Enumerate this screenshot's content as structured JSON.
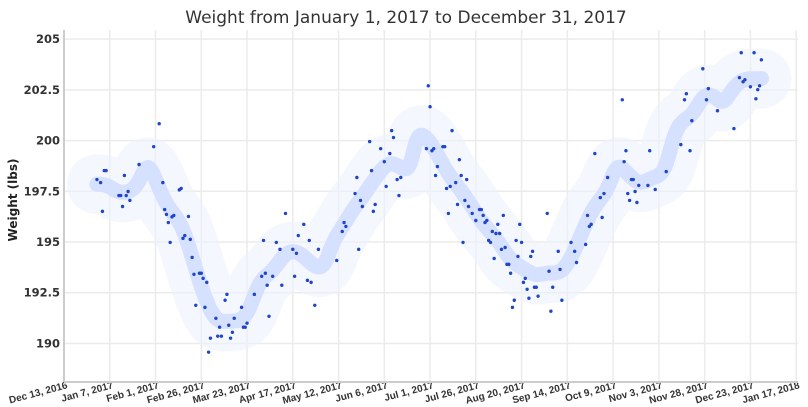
{
  "chart_data": {
    "type": "scatter",
    "title": "Weight from January 1, 2017 to December 31, 2017",
    "xlabel": "",
    "ylabel": "Weight (lbs)",
    "xlim": [
      "2016-12-13",
      "2018-01-18"
    ],
    "ylim": [
      188.1,
      205.45
    ],
    "grid": true,
    "legend": "none",
    "colors": {
      "points": "#1f46c8",
      "trend": "#d6e0ff",
      "grid": "#ebebeb",
      "axis": "#cccccc"
    },
    "x_ticks": [
      "2016-12-13",
      "2017-01-07",
      "2017-02-01",
      "2017-02-26",
      "2017-03-23",
      "2017-04-17",
      "2017-05-12",
      "2017-06-06",
      "2017-07-01",
      "2017-07-26",
      "2017-08-20",
      "2017-09-14",
      "2017-10-09",
      "2017-11-03",
      "2017-11-28",
      "2017-12-23",
      "2018-01-17"
    ],
    "x_tick_labels": [
      "Dec 13, 2016",
      "Jan 7, 2017",
      "Feb 1, 2017",
      "Feb 26, 2017",
      "Mar 23, 2017",
      "Apr 17, 2017",
      "May 12, 2017",
      "Jun 6, 2017",
      "Jul 1, 2017",
      "Jul 26, 2017",
      "Aug 20, 2017",
      "Sep 14, 2017",
      "Oct 9, 2017",
      "Nov 3, 2017",
      "Nov 28, 2017",
      "Dec 23, 2017",
      "Jan 17, 2018"
    ],
    "y_ticks": [
      190,
      192.5,
      195,
      197.5,
      200,
      202.5,
      205
    ],
    "y_tick_labels": [
      "190",
      "192.5",
      "195",
      "197.5",
      "200",
      "202.5",
      "205"
    ],
    "points": [
      [
        "2016-12-31",
        198.08
      ],
      [
        "2017-01-02",
        197.93
      ],
      [
        "2017-01-03",
        196.51
      ],
      [
        "2017-01-04",
        198.52
      ],
      [
        "2017-01-05",
        198.52
      ],
      [
        "2017-01-12",
        197.29
      ],
      [
        "2017-01-13",
        197.29
      ],
      [
        "2017-01-14",
        196.75
      ],
      [
        "2017-01-15",
        198.28
      ],
      [
        "2017-01-16",
        197.29
      ],
      [
        "2017-01-17",
        197.49
      ],
      [
        "2017-01-18",
        197.05
      ],
      [
        "2017-01-23",
        198.82
      ],
      [
        "2017-01-31",
        199.7
      ],
      [
        "2017-02-03",
        200.83
      ],
      [
        "2017-02-05",
        197.93
      ],
      [
        "2017-02-06",
        196.6
      ],
      [
        "2017-02-07",
        196.36
      ],
      [
        "2017-02-08",
        195.96
      ],
      [
        "2017-02-09",
        194.98
      ],
      [
        "2017-02-10",
        196.24
      ],
      [
        "2017-02-11",
        196.31
      ],
      [
        "2017-02-14",
        197.57
      ],
      [
        "2017-02-15",
        197.64
      ],
      [
        "2017-02-16",
        195.18
      ],
      [
        "2017-02-17",
        195.32
      ],
      [
        "2017-02-19",
        196.26
      ],
      [
        "2017-02-20",
        195.13
      ],
      [
        "2017-02-21",
        194.24
      ],
      [
        "2017-02-22",
        193.41
      ],
      [
        "2017-02-23",
        191.88
      ],
      [
        "2017-02-25",
        193.46
      ],
      [
        "2017-02-26",
        193.46
      ],
      [
        "2017-02-27",
        193.21
      ],
      [
        "2017-02-28",
        191.78
      ],
      [
        "2017-03-01",
        193.01
      ],
      [
        "2017-03-02",
        189.57
      ],
      [
        "2017-03-03",
        190.26
      ],
      [
        "2017-03-06",
        191.24
      ],
      [
        "2017-03-07",
        190.36
      ],
      [
        "2017-03-08",
        190.8
      ],
      [
        "2017-03-09",
        190.36
      ],
      [
        "2017-03-11",
        192.13
      ],
      [
        "2017-03-12",
        192.42
      ],
      [
        "2017-03-13",
        190.9
      ],
      [
        "2017-03-14",
        190.26
      ],
      [
        "2017-03-15",
        190.55
      ],
      [
        "2017-03-16",
        191.24
      ],
      [
        "2017-03-20",
        191.78
      ],
      [
        "2017-03-21",
        190.8
      ],
      [
        "2017-03-22",
        190.8
      ],
      [
        "2017-03-23",
        191.0
      ],
      [
        "2017-03-27",
        192.42
      ],
      [
        "2017-03-31",
        193.31
      ],
      [
        "2017-04-01",
        195.08
      ],
      [
        "2017-04-02",
        193.46
      ],
      [
        "2017-04-03",
        192.87
      ],
      [
        "2017-04-04",
        191.34
      ],
      [
        "2017-04-06",
        193.31
      ],
      [
        "2017-04-08",
        194.98
      ],
      [
        "2017-04-10",
        194.64
      ],
      [
        "2017-04-11",
        192.87
      ],
      [
        "2017-04-13",
        196.41
      ],
      [
        "2017-04-17",
        194.64
      ],
      [
        "2017-04-18",
        193.31
      ],
      [
        "2017-04-19",
        194.44
      ],
      [
        "2017-04-20",
        195.32
      ],
      [
        "2017-04-23",
        195.87
      ],
      [
        "2017-04-25",
        193.11
      ],
      [
        "2017-04-26",
        195.08
      ],
      [
        "2017-04-27",
        193.01
      ],
      [
        "2017-04-29",
        191.88
      ],
      [
        "2017-05-01",
        194.64
      ],
      [
        "2017-05-11",
        194.09
      ],
      [
        "2017-05-14",
        195.52
      ],
      [
        "2017-05-15",
        195.96
      ],
      [
        "2017-05-16",
        195.77
      ],
      [
        "2017-05-21",
        197.39
      ],
      [
        "2017-05-22",
        198.18
      ],
      [
        "2017-05-23",
        194.64
      ],
      [
        "2017-05-24",
        197.05
      ],
      [
        "2017-05-25",
        196.75
      ],
      [
        "2017-05-29",
        199.95
      ],
      [
        "2017-05-30",
        198.52
      ],
      [
        "2017-05-31",
        196.51
      ],
      [
        "2017-06-01",
        196.85
      ],
      [
        "2017-06-04",
        199.6
      ],
      [
        "2017-06-06",
        198.96
      ],
      [
        "2017-06-07",
        197.74
      ],
      [
        "2017-06-09",
        199.36
      ],
      [
        "2017-06-10",
        200.49
      ],
      [
        "2017-06-11",
        200.15
      ],
      [
        "2017-06-13",
        198.08
      ],
      [
        "2017-06-14",
        197.29
      ],
      [
        "2017-06-15",
        198.18
      ],
      [
        "2017-06-29",
        199.6
      ],
      [
        "2017-06-30",
        202.7
      ],
      [
        "2017-07-01",
        201.67
      ],
      [
        "2017-07-02",
        199.5
      ],
      [
        "2017-07-03",
        199.6
      ],
      [
        "2017-07-04",
        198.28
      ],
      [
        "2017-07-05",
        198.72
      ],
      [
        "2017-07-08",
        199.7
      ],
      [
        "2017-07-09",
        199.7
      ],
      [
        "2017-07-10",
        197.64
      ],
      [
        "2017-07-11",
        196.41
      ],
      [
        "2017-07-12",
        197.74
      ],
      [
        "2017-07-13",
        200.49
      ],
      [
        "2017-07-15",
        197.93
      ],
      [
        "2017-07-16",
        196.85
      ],
      [
        "2017-07-17",
        199.06
      ],
      [
        "2017-07-18",
        198.28
      ],
      [
        "2017-07-19",
        194.98
      ],
      [
        "2017-07-20",
        197.05
      ],
      [
        "2017-07-21",
        198.08
      ],
      [
        "2017-07-22",
        196.75
      ],
      [
        "2017-07-24",
        196.41
      ],
      [
        "2017-07-26",
        196.06
      ],
      [
        "2017-07-28",
        196.6
      ],
      [
        "2017-07-29",
        196.6
      ],
      [
        "2017-07-30",
        196.31
      ],
      [
        "2017-07-31",
        195.96
      ],
      [
        "2017-08-01",
        196.06
      ],
      [
        "2017-08-02",
        195.08
      ],
      [
        "2017-08-03",
        194.98
      ],
      [
        "2017-08-04",
        195.52
      ],
      [
        "2017-08-05",
        194.19
      ],
      [
        "2017-08-06",
        195.42
      ],
      [
        "2017-08-07",
        195.87
      ],
      [
        "2017-08-08",
        195.42
      ],
      [
        "2017-08-09",
        194.64
      ],
      [
        "2017-08-10",
        196.31
      ],
      [
        "2017-08-11",
        194.73
      ],
      [
        "2017-08-12",
        193.9
      ],
      [
        "2017-08-13",
        193.9
      ],
      [
        "2017-08-14",
        193.46
      ],
      [
        "2017-08-15",
        191.78
      ],
      [
        "2017-08-16",
        192.13
      ],
      [
        "2017-08-17",
        195.08
      ],
      [
        "2017-08-18",
        194.29
      ],
      [
        "2017-08-19",
        195.87
      ],
      [
        "2017-08-20",
        194.98
      ],
      [
        "2017-08-21",
        193.01
      ],
      [
        "2017-08-22",
        193.21
      ],
      [
        "2017-08-23",
        192.67
      ],
      [
        "2017-08-24",
        192.23
      ],
      [
        "2017-08-25",
        194.29
      ],
      [
        "2017-08-26",
        194.54
      ],
      [
        "2017-08-27",
        192.77
      ],
      [
        "2017-08-28",
        192.77
      ],
      [
        "2017-08-29",
        192.33
      ],
      [
        "2017-09-03",
        196.41
      ],
      [
        "2017-09-04",
        193.56
      ],
      [
        "2017-09-05",
        191.59
      ],
      [
        "2017-09-06",
        192.77
      ],
      [
        "2017-09-09",
        194.54
      ],
      [
        "2017-09-10",
        193.65
      ],
      [
        "2017-09-11",
        192.13
      ],
      [
        "2017-09-16",
        194.98
      ],
      [
        "2017-09-18",
        194.54
      ],
      [
        "2017-09-19",
        193.99
      ],
      [
        "2017-09-24",
        194.88
      ],
      [
        "2017-09-25",
        196.31
      ],
      [
        "2017-09-26",
        195.77
      ],
      [
        "2017-09-27",
        195.87
      ],
      [
        "2017-09-29",
        199.36
      ],
      [
        "2017-10-02",
        197.19
      ],
      [
        "2017-10-03",
        196.21
      ],
      [
        "2017-10-04",
        197.39
      ],
      [
        "2017-10-06",
        198.18
      ],
      [
        "2017-10-14",
        202.01
      ],
      [
        "2017-10-15",
        198.96
      ],
      [
        "2017-10-16",
        199.5
      ],
      [
        "2017-10-17",
        197.39
      ],
      [
        "2017-10-18",
        197.05
      ],
      [
        "2017-10-19",
        198.08
      ],
      [
        "2017-10-20",
        198.08
      ],
      [
        "2017-10-21",
        197.49
      ],
      [
        "2017-10-22",
        196.95
      ],
      [
        "2017-10-23",
        197.79
      ],
      [
        "2017-10-28",
        197.79
      ],
      [
        "2017-10-29",
        199.5
      ],
      [
        "2017-11-01",
        197.59
      ],
      [
        "2017-11-07",
        198.47
      ],
      [
        "2017-11-15",
        199.8
      ],
      [
        "2017-11-17",
        202.01
      ],
      [
        "2017-11-18",
        202.31
      ],
      [
        "2017-11-20",
        199.5
      ],
      [
        "2017-11-21",
        200.98
      ],
      [
        "2017-11-27",
        203.54
      ],
      [
        "2017-11-29",
        202.01
      ],
      [
        "2017-11-30",
        202.56
      ],
      [
        "2017-12-05",
        201.47
      ],
      [
        "2017-12-14",
        200.59
      ],
      [
        "2017-12-17",
        203.1
      ],
      [
        "2017-12-18",
        204.33
      ],
      [
        "2017-12-19",
        202.9
      ],
      [
        "2017-12-20",
        203.0
      ],
      [
        "2017-12-23",
        202.65
      ],
      [
        "2017-12-25",
        204.33
      ],
      [
        "2017-12-26",
        202.06
      ],
      [
        "2017-12-27",
        202.51
      ],
      [
        "2017-12-28",
        202.7
      ],
      [
        "2017-12-29",
        203.98
      ]
    ]
  }
}
